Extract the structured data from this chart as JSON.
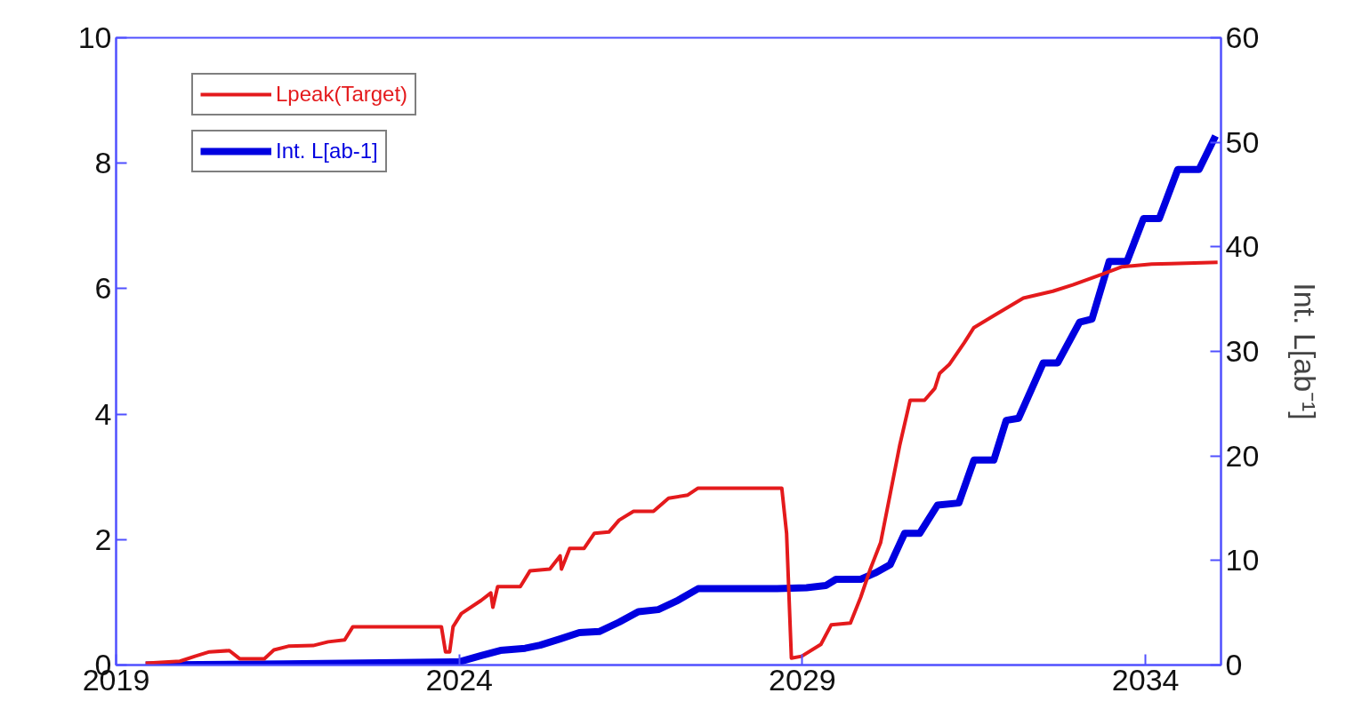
{
  "chart_data": {
    "type": "line",
    "y2label": "Int. L[ab⁻¹]",
    "xlim": [
      2019,
      2035.1
    ],
    "xticks": [
      2019,
      2024,
      2029,
      2034
    ],
    "ylim": [
      0,
      10
    ],
    "yticks": [
      0,
      2,
      4,
      6,
      8,
      10
    ],
    "y2lim": [
      0,
      60
    ],
    "y2ticks": [
      0,
      10,
      20,
      30,
      40,
      50,
      60
    ],
    "grid": false,
    "legend": "top left",
    "marker": "none",
    "line_style": "solid",
    "series": [
      {
        "name": "Lpeak(Target)",
        "color": "#e41a1c",
        "x": [
          2019.43,
          2019.93,
          2020.15,
          2020.36,
          2020.65,
          2020.8,
          2021.16,
          2021.3,
          2021.51,
          2021.87,
          2022.09,
          2022.33,
          2022.45,
          2023.74,
          2023.8,
          2023.86,
          2023.91,
          2024.03,
          2024.32,
          2024.46,
          2024.49,
          2024.56,
          2024.89,
          2025.03,
          2025.32,
          2025.47,
          2025.49,
          2025.61,
          2025.82,
          2025.97,
          2026.18,
          2026.33,
          2026.54,
          2026.83,
          2027.05,
          2027.33,
          2027.48,
          2028.7,
          2028.77,
          2028.84,
          2028.99,
          2029.27,
          2029.42,
          2029.7,
          2029.85,
          2029.99,
          2030.14,
          2030.28,
          2030.42,
          2030.57,
          2030.78,
          2030.93,
          2031.0,
          2031.14,
          2031.36,
          2031.5,
          2031.79,
          2032.22,
          2032.65,
          2032.94,
          2033.37,
          2033.66,
          2034.09,
          2034.37,
          2035.05
        ],
        "values": [
          0.03,
          0.06,
          0.14,
          0.21,
          0.23,
          0.1,
          0.1,
          0.24,
          0.3,
          0.31,
          0.37,
          0.4,
          0.61,
          0.61,
          0.21,
          0.21,
          0.61,
          0.82,
          1.03,
          1.15,
          0.92,
          1.25,
          1.25,
          1.5,
          1.53,
          1.74,
          1.53,
          1.86,
          1.86,
          2.1,
          2.12,
          2.31,
          2.45,
          2.45,
          2.66,
          2.71,
          2.82,
          2.82,
          2.1,
          0.11,
          0.14,
          0.33,
          0.64,
          0.67,
          1.08,
          1.53,
          1.95,
          2.73,
          3.51,
          4.22,
          4.22,
          4.41,
          4.65,
          4.79,
          5.14,
          5.38,
          5.57,
          5.85,
          5.96,
          6.06,
          6.23,
          6.35,
          6.39,
          6.4,
          6.42
        ]
      },
      {
        "name": "Int. L[ab-1]",
        "color": "#0000e0",
        "axis": "y2",
        "x": [
          2019.43,
          2021.44,
          2022.59,
          2023.89,
          2024.0,
          2024.32,
          2024.6,
          2024.96,
          2025.18,
          2025.47,
          2025.75,
          2026.04,
          2026.33,
          2026.61,
          2026.9,
          2027.19,
          2027.48,
          2028.63,
          2029.06,
          2029.34,
          2029.49,
          2029.85,
          2030.06,
          2030.28,
          2030.49,
          2030.71,
          2030.97,
          2031.28,
          2031.5,
          2031.79,
          2031.97,
          2032.15,
          2032.51,
          2032.72,
          2033.04,
          2033.22,
          2033.47,
          2033.73,
          2033.97,
          2034.2,
          2034.47,
          2034.78,
          2035.02
        ],
        "values": [
          0,
          0.1,
          0.2,
          0.3,
          0.3,
          0.9,
          1.4,
          1.6,
          1.9,
          2.5,
          3.1,
          3.2,
          4.1,
          5.1,
          5.3,
          6.2,
          7.3,
          7.3,
          7.4,
          7.6,
          8.2,
          8.2,
          8.8,
          9.6,
          12.6,
          12.6,
          15.3,
          15.5,
          19.6,
          19.6,
          23.4,
          23.6,
          28.9,
          28.9,
          32.8,
          33.1,
          38.6,
          38.6,
          42.7,
          42.7,
          47.4,
          47.4,
          50.6
        ]
      }
    ]
  }
}
